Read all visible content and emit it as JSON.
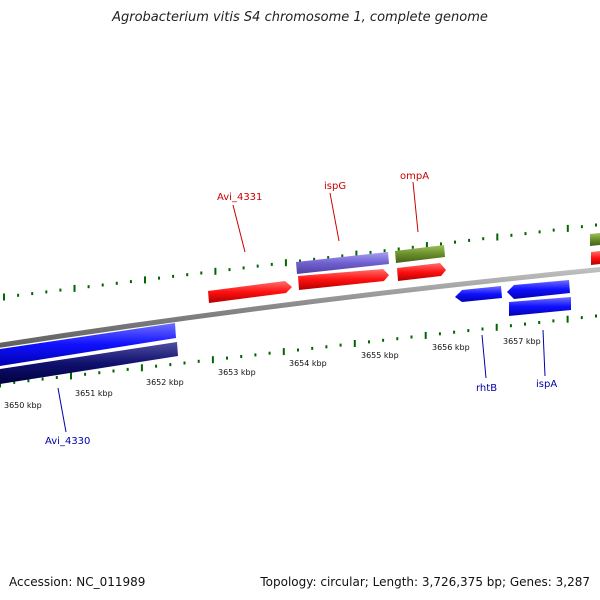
{
  "title": "Agrobacterium vitis S4 chromosome 1, complete genome",
  "footer": {
    "accession": "Accession: NC_011989",
    "summary": "Topology: circular; Length: 3,726,375 bp; Genes: 3,287"
  },
  "colors": {
    "forward_label": "#cc0000",
    "reverse_label": "#0000aa",
    "tick": "#006600",
    "backbone": "#888888"
  },
  "kbp_labels": [
    "3650 kbp",
    "3651 kbp",
    "3652 kbp",
    "3653 kbp",
    "3654 kbp",
    "3655 kbp",
    "3656 kbp",
    "3657 kbp"
  ],
  "gene_labels": {
    "avi_4331": "Avi_4331",
    "ispG": "ispG",
    "ompA": "ompA",
    "rhtB": "rhtB",
    "ispA": "ispA",
    "avi_4330": "Avi_4330"
  }
}
